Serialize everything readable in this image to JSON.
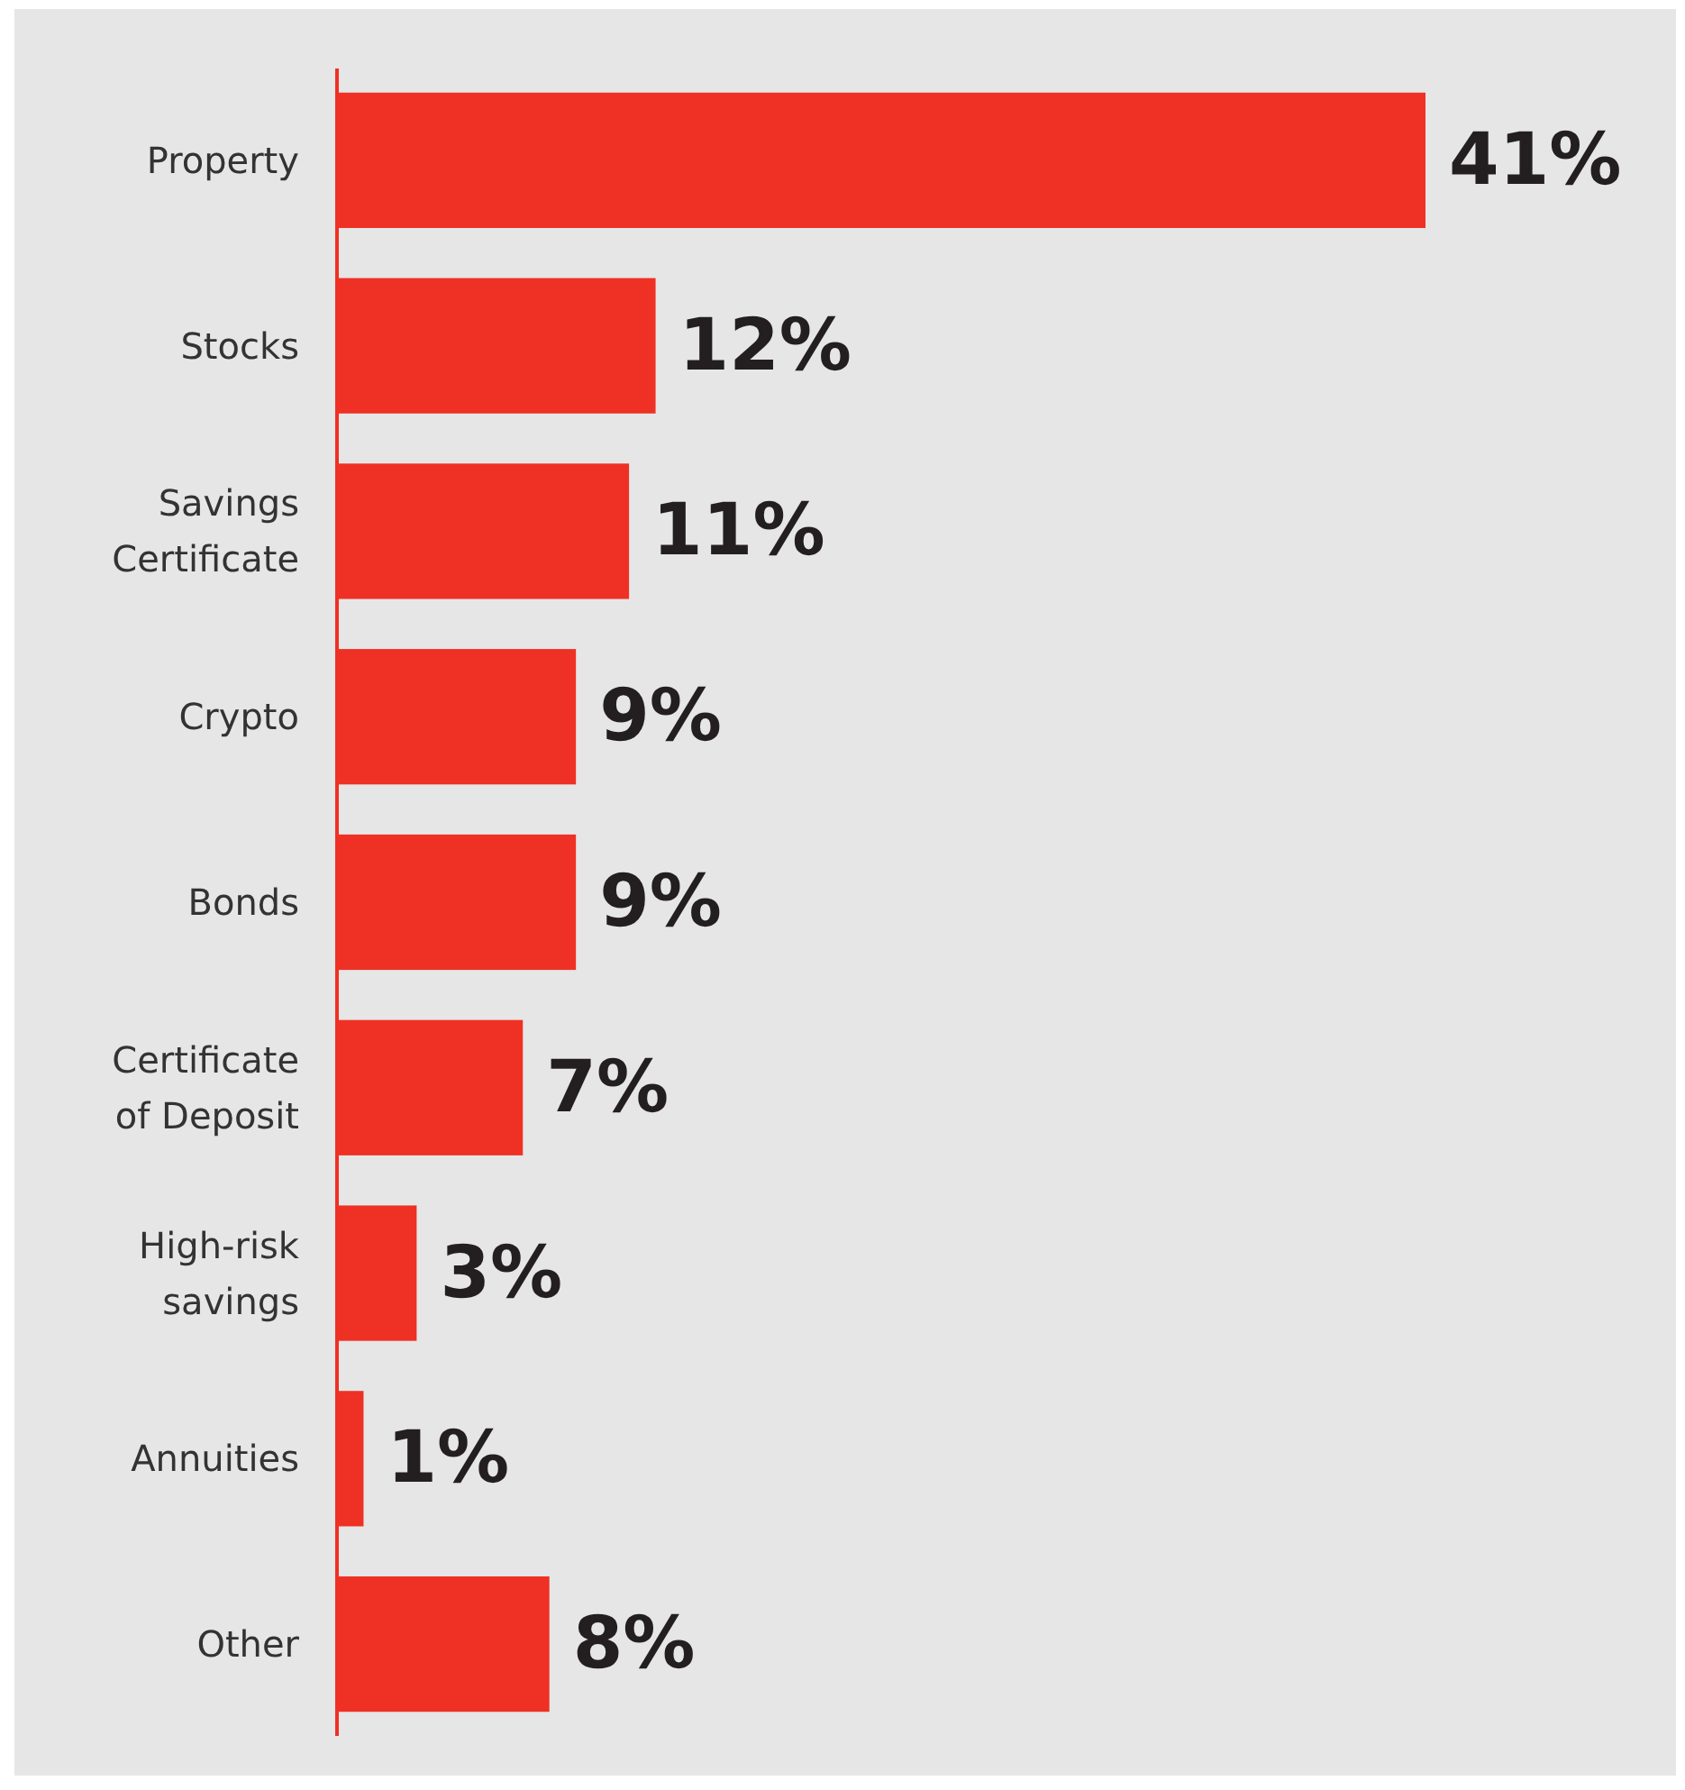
{
  "chart_data": {
    "type": "bar",
    "orientation": "horizontal",
    "categories": [
      "Property",
      "Stocks",
      "Savings Certificate",
      "Crypto",
      "Bonds",
      "Certificate of Deposit",
      "High-risk savings",
      "Annuities",
      "Other"
    ],
    "values": [
      41,
      12,
      11,
      9,
      9,
      7,
      3,
      1,
      8
    ],
    "value_labels": [
      "41%",
      "12%",
      "11%",
      "9%",
      "9%",
      "7%",
      "3%",
      "1%",
      "8%"
    ],
    "color": "#ee3124"
  }
}
